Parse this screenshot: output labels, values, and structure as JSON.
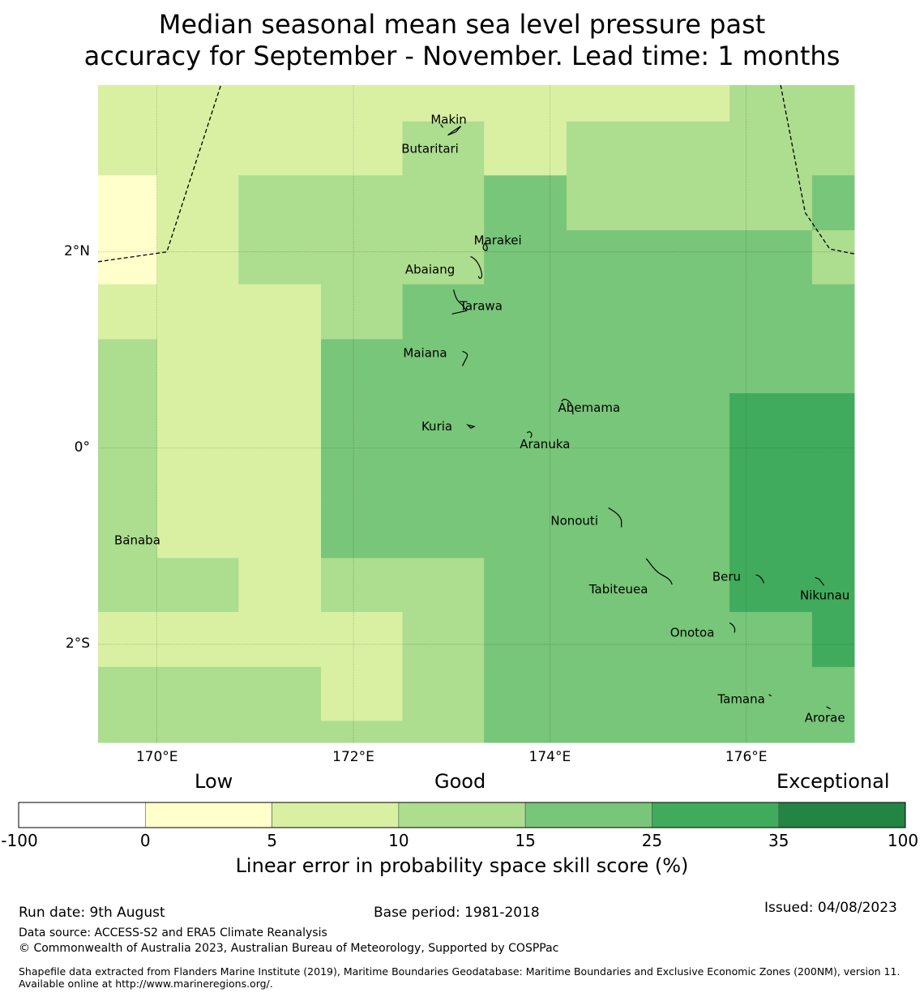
{
  "title": {
    "line1": "Median seasonal mean sea level pressure past",
    "line2": "accuracy for September - November. Lead time: 1 months"
  },
  "map": {
    "lat_labels": [
      "2°N",
      "0°",
      "2°S"
    ],
    "lon_labels": [
      "170°E",
      "172°E",
      "174°E",
      "176°E"
    ],
    "lat_values": [
      2,
      0,
      -2
    ],
    "lon_values": [
      170,
      172,
      174,
      176
    ],
    "extent": {
      "lon_min": 169.4,
      "lon_max": 177.1,
      "lat_min": -3.0,
      "lat_max": 3.7
    },
    "places": [
      {
        "name": "Makin",
        "lon": 172.97,
        "lat": 3.35
      },
      {
        "name": "Butaritari",
        "lon": 172.78,
        "lat": 3.05
      },
      {
        "name": "Marakei",
        "lon": 173.47,
        "lat": 2.12
      },
      {
        "name": "Abaiang",
        "lon": 172.78,
        "lat": 1.82
      },
      {
        "name": "Tarawa",
        "lon": 173.3,
        "lat": 1.45
      },
      {
        "name": "Maiana",
        "lon": 172.73,
        "lat": 0.97
      },
      {
        "name": "Abemama",
        "lon": 174.4,
        "lat": 0.41
      },
      {
        "name": "Kuria",
        "lon": 172.85,
        "lat": 0.22
      },
      {
        "name": "Aranuka",
        "lon": 173.95,
        "lat": 0.04
      },
      {
        "name": "Nonouti",
        "lon": 174.25,
        "lat": -0.74
      },
      {
        "name": "Banaba",
        "lon": 169.8,
        "lat": -0.94
      },
      {
        "name": "Beru",
        "lon": 175.8,
        "lat": -1.31
      },
      {
        "name": "Tabiteuea",
        "lon": 174.7,
        "lat": -1.44
      },
      {
        "name": "Nikunau",
        "lon": 176.8,
        "lat": -1.5
      },
      {
        "name": "Onotoa",
        "lon": 175.45,
        "lat": -1.88
      },
      {
        "name": "Tamana",
        "lon": 175.95,
        "lat": -2.56
      },
      {
        "name": "Arorae",
        "lon": 176.8,
        "lat": -2.75
      }
    ],
    "grid": {
      "lon_edges": [
        169.4,
        170.0,
        170.83,
        171.67,
        172.5,
        173.33,
        174.17,
        175.0,
        175.83,
        176.67,
        177.1
      ],
      "lat_edges": [
        3.7,
        3.33,
        2.78,
        2.22,
        1.67,
        1.11,
        0.56,
        0.0,
        -0.56,
        -1.12,
        -1.67,
        -2.23,
        -2.78,
        -3.0
      ],
      "classes": [
        [
          2,
          2,
          2,
          2,
          2,
          2,
          2,
          2,
          3,
          3
        ],
        [
          2,
          2,
          2,
          2,
          3,
          2,
          3,
          3,
          3,
          3
        ],
        [
          1,
          2,
          3,
          3,
          3,
          4,
          3,
          3,
          3,
          4
        ],
        [
          1,
          2,
          3,
          3,
          3,
          4,
          4,
          4,
          4,
          3
        ],
        [
          2,
          2,
          2,
          3,
          4,
          4,
          4,
          4,
          4,
          4
        ],
        [
          3,
          2,
          2,
          4,
          4,
          4,
          4,
          4,
          4,
          4
        ],
        [
          3,
          2,
          2,
          4,
          4,
          4,
          4,
          4,
          5,
          5
        ],
        [
          3,
          2,
          2,
          4,
          4,
          4,
          4,
          4,
          5,
          5
        ],
        [
          3,
          2,
          2,
          4,
          4,
          4,
          4,
          4,
          5,
          5
        ],
        [
          3,
          3,
          2,
          3,
          3,
          4,
          4,
          4,
          5,
          5
        ],
        [
          2,
          2,
          2,
          2,
          3,
          4,
          4,
          4,
          4,
          5
        ],
        [
          3,
          3,
          3,
          2,
          3,
          4,
          4,
          4,
          4,
          4
        ],
        [
          3,
          3,
          3,
          3,
          3,
          4,
          4,
          4,
          4,
          4
        ]
      ]
    },
    "boundaries": [
      [
        [
          169.4,
          1.9
        ],
        [
          170.1,
          2.0
        ],
        [
          170.65,
          3.7
        ]
      ],
      [
        [
          176.35,
          3.7
        ],
        [
          176.6,
          2.4
        ],
        [
          176.85,
          2.03
        ],
        [
          177.1,
          1.98
        ]
      ]
    ]
  },
  "colorbar": {
    "words": {
      "low": "Low",
      "good": "Good",
      "exceptional": "Exceptional"
    },
    "ticks": [
      "-100",
      "0",
      "5",
      "10",
      "15",
      "25",
      "35",
      "100"
    ],
    "colors": [
      "#ffffff",
      "#ffffcc",
      "#d9f0a3",
      "#addd8e",
      "#78c679",
      "#41ab5d",
      "#238443"
    ],
    "label": "Linear error in probability space skill score (%)"
  },
  "footer": {
    "run_date": "Run date: 9th August",
    "base_period": "Base period: 1981-2018",
    "issued": "Issued: 04/08/2023",
    "data_source": "Data source: ACCESS-S2 and ERA5 Climate Reanalysis",
    "copyright": "© Commonwealth of Australia 2023, Australian Bureau of Meteorology, Supported by COSPPac",
    "shapefile": "Shapefile data extracted from Flanders Marine Institute (2019), Maritime Boundaries Geodatabase: Maritime Boundaries and Exclusive Economic Zones (200NM), version 11. Available online at http://www.marineregions.org/."
  }
}
